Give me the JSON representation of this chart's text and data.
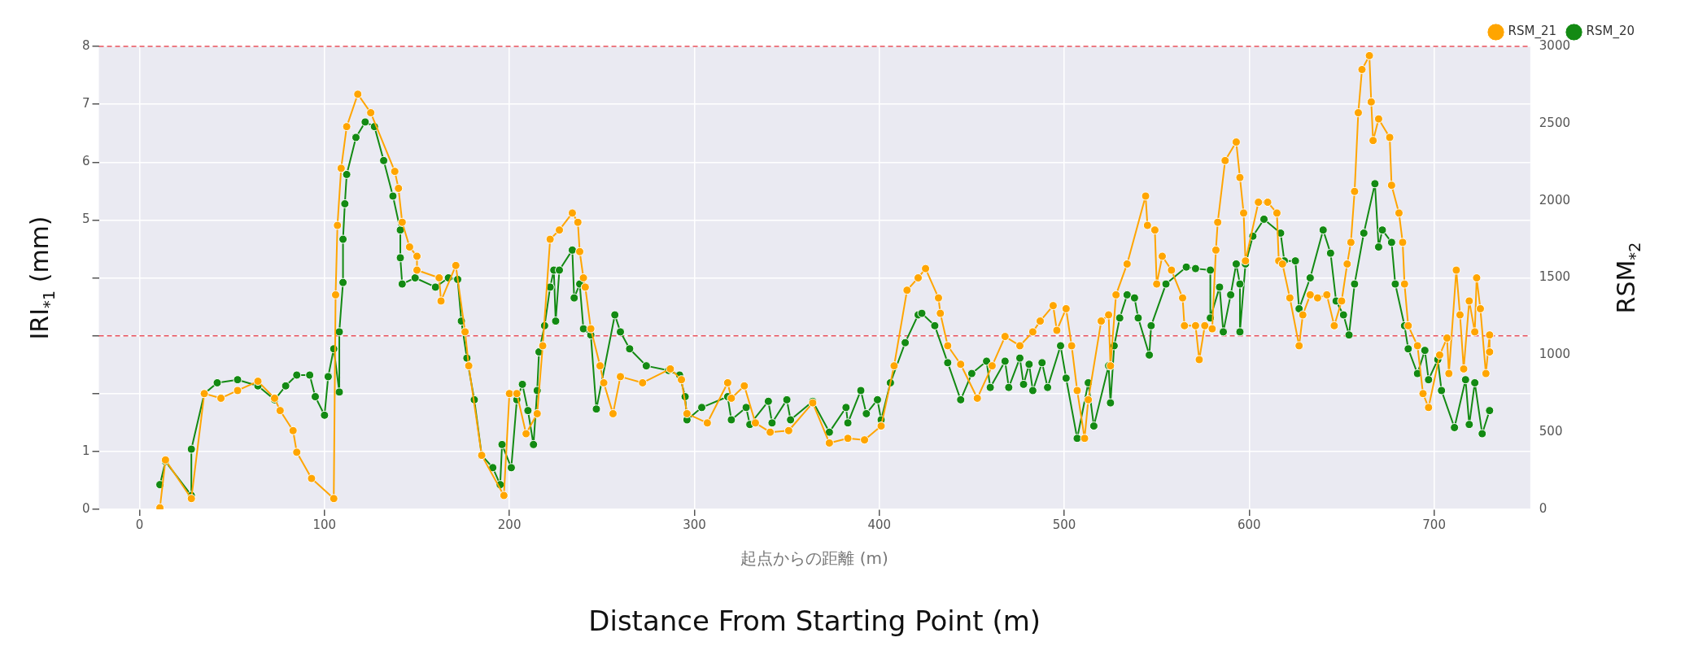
{
  "chart_data": {
    "type": "line",
    "xlabel": "起点からの距離 (m)",
    "ylabel": "IRI$_{*1}$ (mm)",
    "y2label": "RSM$_{*2}$",
    "annotations": [
      "Distance From Starting Point (m)"
    ],
    "xlim": [
      -22,
      752
    ],
    "xticks": [
      0,
      100,
      200,
      300,
      400,
      500,
      600,
      700
    ],
    "ylim": [
      0,
      8
    ],
    "yticks": [
      0,
      1,
      {
        "value": 2,
        "label": null
      },
      {
        "value": 3,
        "label": null
      },
      {
        "value": 4,
        "label": null
      },
      5,
      6,
      7,
      8
    ],
    "y2lim": [
      0,
      3000
    ],
    "y2ticks": [
      0,
      500,
      1000,
      1500,
      2000,
      2500,
      3000
    ],
    "grid": true,
    "legend": "top right",
    "marker": "circle",
    "line_style": "solid",
    "ref_lines": [
      {
        "axis": "y",
        "value": 8,
        "color": "#e8505b",
        "line_style": "dashed"
      },
      {
        "axis": "y",
        "value": 3,
        "color": "#e8505b",
        "line_style": "dashed"
      }
    ],
    "series": [
      {
        "name": "RSM_21",
        "color": "#ffa500",
        "axis": "y2",
        "x": [
          11,
          14,
          28,
          35,
          44,
          53,
          64,
          73,
          76,
          83,
          85,
          93,
          105,
          106,
          107,
          109,
          112,
          118,
          125,
          138,
          140,
          142,
          146,
          150,
          150,
          162,
          163,
          171,
          176,
          178,
          185,
          197,
          200,
          204,
          209,
          215,
          218,
          222,
          227,
          234,
          237,
          238,
          240,
          241,
          244,
          249,
          251,
          256,
          260,
          272,
          287,
          293,
          296,
          307,
          318,
          320,
          327,
          333,
          341,
          351,
          364,
          373,
          383,
          392,
          401,
          408,
          415,
          421,
          425,
          432,
          433,
          437,
          444,
          453,
          461,
          468,
          476,
          483,
          487,
          494,
          496,
          501,
          504,
          507,
          511,
          513,
          520,
          524,
          525,
          528,
          534,
          544,
          545,
          549,
          550,
          553,
          558,
          564,
          565,
          571,
          573,
          576,
          580,
          582,
          583,
          587,
          593,
          595,
          597,
          598,
          605,
          610,
          615,
          616,
          618,
          622,
          627,
          629,
          633,
          637,
          642,
          646,
          650,
          653,
          655,
          657,
          659,
          661,
          665,
          666,
          667,
          670,
          676,
          677,
          681,
          683,
          684,
          686,
          691,
          694,
          697,
          703,
          707,
          708,
          712,
          714,
          716,
          719,
          722,
          723,
          725,
          728,
          730,
          730
        ],
        "values": [
          10,
          320,
          70,
          750,
          720,
          770,
          830,
          720,
          640,
          510,
          370,
          200,
          70,
          1390,
          1840,
          2210,
          2480,
          2690,
          2570,
          2190,
          2080,
          1860,
          1700,
          1640,
          1550,
          1500,
          1350,
          1580,
          1150,
          930,
          350,
          90,
          750,
          750,
          490,
          620,
          1060,
          1750,
          1810,
          1920,
          1860,
          1670,
          1500,
          1440,
          1170,
          930,
          820,
          620,
          860,
          820,
          910,
          840,
          620,
          560,
          820,
          720,
          800,
          560,
          500,
          510,
          690,
          430,
          460,
          450,
          540,
          930,
          1420,
          1500,
          1560,
          1370,
          1270,
          1060,
          940,
          720,
          930,
          1120,
          1060,
          1150,
          1220,
          1320,
          1160,
          1300,
          1060,
          770,
          460,
          710,
          1220,
          1260,
          930,
          1390,
          1590,
          2030,
          1840,
          1810,
          1460,
          1640,
          1550,
          1370,
          1190,
          1190,
          970,
          1190,
          1170,
          1680,
          1860,
          2260,
          2380,
          2150,
          1920,
          1610,
          1990,
          1990,
          1920,
          1610,
          1590,
          1370,
          1060,
          1260,
          1390,
          1370,
          1390,
          1190,
          1350,
          1590,
          1730,
          2060,
          2570,
          2850,
          2940,
          2640,
          2390,
          2530,
          2410,
          2100,
          1920,
          1730,
          1460,
          1190,
          1060,
          750,
          660,
          1000,
          1110,
          880,
          1550,
          1260,
          910,
          1350,
          1150,
          1500,
          1300,
          880,
          1130,
          1020
        ]
      },
      {
        "name": "RSM_20",
        "color": "#138a13",
        "axis": "y2",
        "x": [
          11,
          14,
          28,
          28,
          35,
          42,
          53,
          64,
          73,
          79,
          85,
          92,
          95,
          100,
          102,
          105,
          108,
          108,
          110,
          110,
          111,
          112,
          117,
          122,
          127,
          132,
          137,
          141,
          141,
          142,
          149,
          160,
          167,
          172,
          174,
          177,
          181,
          185,
          191,
          195,
          196,
          201,
          204,
          207,
          210,
          213,
          215,
          216,
          219,
          222,
          224,
          225,
          227,
          234,
          235,
          238,
          240,
          244,
          247,
          257,
          260,
          265,
          274,
          286,
          292,
          295,
          296,
          304,
          318,
          320,
          328,
          330,
          340,
          342,
          350,
          352,
          364,
          373,
          382,
          383,
          390,
          393,
          399,
          401,
          406,
          414,
          421,
          423,
          430,
          437,
          444,
          450,
          458,
          460,
          468,
          470,
          476,
          478,
          481,
          483,
          488,
          491,
          498,
          501,
          507,
          513,
          516,
          524,
          525,
          527,
          530,
          534,
          538,
          540,
          546,
          547,
          555,
          566,
          571,
          579,
          579,
          584,
          586,
          590,
          593,
          595,
          595,
          598,
          602,
          608,
          617,
          619,
          625,
          627,
          633,
          640,
          644,
          647,
          651,
          654,
          657,
          662,
          668,
          670,
          672,
          677,
          679,
          684,
          686,
          691,
          695,
          697,
          702,
          704,
          711,
          717,
          719,
          722,
          726,
          730
        ],
        "values": [
          160,
          310,
          90,
          390,
          750,
          820,
          840,
          800,
          710,
          800,
          870,
          870,
          730,
          610,
          860,
          1040,
          760,
          1150,
          1470,
          1750,
          1980,
          2170,
          2410,
          2510,
          2480,
          2260,
          2030,
          1810,
          1630,
          1460,
          1500,
          1440,
          1500,
          1490,
          1220,
          980,
          710,
          350,
          270,
          160,
          420,
          270,
          710,
          810,
          640,
          420,
          770,
          1020,
          1190,
          1440,
          1550,
          1220,
          1550,
          1680,
          1370,
          1460,
          1170,
          1130,
          650,
          1260,
          1150,
          1040,
          930,
          900,
          870,
          730,
          580,
          660,
          730,
          580,
          660,
          550,
          700,
          560,
          710,
          580,
          700,
          500,
          660,
          560,
          770,
          620,
          710,
          580,
          820,
          1080,
          1260,
          1270,
          1190,
          950,
          710,
          880,
          960,
          790,
          960,
          790,
          980,
          810,
          940,
          770,
          950,
          790,
          1060,
          850,
          460,
          820,
          540,
          930,
          690,
          1060,
          1240,
          1390,
          1370,
          1240,
          1000,
          1190,
          1460,
          1570,
          1560,
          1550,
          1240,
          1440,
          1150,
          1390,
          1590,
          1460,
          1150,
          1590,
          1770,
          1880,
          1790,
          1610,
          1610,
          1300,
          1500,
          1810,
          1660,
          1350,
          1260,
          1130,
          1460,
          1790,
          2110,
          1700,
          1810,
          1730,
          1460,
          1190,
          1040,
          880,
          1030,
          840,
          970,
          770,
          530,
          840,
          550,
          820,
          490,
          640
        ]
      }
    ]
  }
}
